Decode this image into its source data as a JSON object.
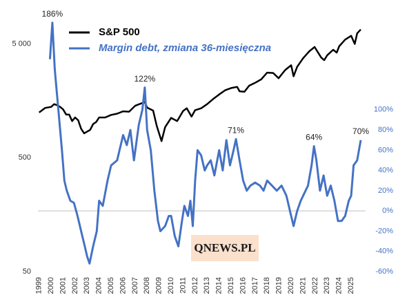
{
  "chart_data": {
    "type": "line",
    "watermark": "QNEWS.PL",
    "xlim": [
      1998.9,
      2026.2
    ],
    "xticks": [
      1999,
      2000,
      2001,
      2002,
      2003,
      2004,
      2005,
      2006,
      2007,
      2008,
      2009,
      2010,
      2011,
      2012,
      2013,
      2014,
      2015,
      2016,
      2017,
      2018,
      2019,
      2020,
      2021,
      2022,
      2023,
      2024,
      2025
    ],
    "ylim": [
      50,
      8000
    ],
    "ylog": true,
    "yticks": [
      50,
      500,
      {
        "value": 5000,
        "label": "5 000"
      }
    ],
    "y2lim": [
      -60,
      188
    ],
    "y2ticks": [
      {
        "value": -60,
        "label": "-60%"
      },
      {
        "value": -40,
        "label": "-40%"
      },
      {
        "value": -20,
        "label": "-20%"
      },
      {
        "value": 0,
        "label": "0%"
      },
      {
        "value": 20,
        "label": "20%"
      },
      {
        "value": 40,
        "label": "40%"
      },
      {
        "value": 60,
        "label": "60%"
      },
      {
        "value": 80,
        "label": "80%"
      },
      {
        "value": 100,
        "label": "100%"
      }
    ],
    "zero_line": true,
    "series": [
      {
        "name": "S&P 500",
        "color": "#000000",
        "x": [
          1999.0,
          1999.5,
          2000.0,
          2000.25,
          2000.5,
          2000.75,
          2001.0,
          2001.25,
          2001.5,
          2001.75,
          2002.0,
          2002.25,
          2002.5,
          2002.75,
          2003.0,
          2003.25,
          2003.5,
          2003.75,
          2004.0,
          2004.5,
          2005.0,
          2005.5,
          2006.0,
          2006.5,
          2007.0,
          2007.5,
          2007.8,
          2008.0,
          2008.5,
          2008.8,
          2009.2,
          2009.5,
          2010.0,
          2010.5,
          2011.0,
          2011.3,
          2011.7,
          2012.0,
          2012.5,
          2013.0,
          2013.5,
          2014.0,
          2014.5,
          2015.0,
          2015.5,
          2015.7,
          2016.1,
          2016.5,
          2017.0,
          2017.5,
          2018.0,
          2018.5,
          2018.95,
          2019.5,
          2020.0,
          2020.2,
          2020.5,
          2021.0,
          2021.5,
          2021.95,
          2022.5,
          2022.75,
          2023.0,
          2023.5,
          2023.8,
          2024.0,
          2024.5,
          2025.0,
          2025.3,
          2025.5,
          2025.8
        ],
        "values": [
          1250,
          1370,
          1400,
          1480,
          1450,
          1400,
          1330,
          1200,
          1200,
          1050,
          1130,
          1070,
          900,
          820,
          850,
          880,
          990,
          1030,
          1130,
          1130,
          1190,
          1220,
          1280,
          1270,
          1430,
          1500,
          1540,
          1380,
          1300,
          950,
          700,
          930,
          1120,
          1050,
          1290,
          1360,
          1150,
          1310,
          1360,
          1480,
          1640,
          1800,
          1960,
          2050,
          2100,
          1920,
          1900,
          2150,
          2280,
          2440,
          2800,
          2780,
          2500,
          2950,
          3250,
          2600,
          3150,
          3750,
          4300,
          4700,
          3800,
          3600,
          3970,
          4450,
          4200,
          4770,
          5460,
          5900,
          5000,
          6200,
          6700
        ]
      },
      {
        "name": "Margin debt, zmiana 36-miesięczna",
        "color": "#4472c4",
        "axis": "y2",
        "x": [
          1999.9,
          2000.1,
          2000.3,
          2000.6,
          2000.9,
          2001.1,
          2001.3,
          2001.6,
          2001.9,
          2002.2,
          2002.5,
          2002.8,
          2003.0,
          2003.2,
          2003.5,
          2003.8,
          2004.0,
          2004.3,
          2004.7,
          2005.0,
          2005.5,
          2006.0,
          2006.3,
          2006.6,
          2006.9,
          2007.3,
          2007.6,
          2007.8,
          2008.0,
          2008.3,
          2008.6,
          2008.9,
          2009.1,
          2009.5,
          2009.8,
          2010.0,
          2010.3,
          2010.6,
          2010.9,
          2011.1,
          2011.4,
          2011.6,
          2011.8,
          2012.0,
          2012.2,
          2012.5,
          2012.8,
          2013.0,
          2013.3,
          2013.6,
          2014.0,
          2014.3,
          2014.6,
          2014.9,
          2015.2,
          2015.4,
          2015.7,
          2016.0,
          2016.3,
          2016.6,
          2017.0,
          2017.4,
          2017.7,
          2018.0,
          2018.4,
          2018.8,
          2019.2,
          2019.6,
          2020.0,
          2020.2,
          2020.5,
          2020.8,
          2021.0,
          2021.4,
          2021.7,
          2021.9,
          2022.1,
          2022.4,
          2022.7,
          2023.0,
          2023.3,
          2023.6,
          2023.9,
          2024.2,
          2024.5,
          2024.8,
          2025.0,
          2025.2,
          2025.5,
          2025.8
        ],
        "values": [
          150,
          186,
          140,
          100,
          60,
          30,
          20,
          10,
          8,
          -5,
          -20,
          -35,
          -45,
          -52,
          -35,
          -20,
          10,
          5,
          30,
          45,
          50,
          75,
          65,
          80,
          50,
          85,
          100,
          122,
          80,
          60,
          20,
          -10,
          -20,
          -15,
          -5,
          -5,
          -25,
          -35,
          -10,
          5,
          -5,
          10,
          -15,
          30,
          60,
          55,
          40,
          45,
          50,
          35,
          60,
          40,
          70,
          45,
          60,
          71,
          50,
          30,
          20,
          25,
          28,
          25,
          20,
          30,
          25,
          20,
          25,
          15,
          -5,
          -15,
          0,
          10,
          15,
          25,
          45,
          64,
          50,
          20,
          35,
          15,
          25,
          10,
          -10,
          -10,
          -5,
          10,
          15,
          45,
          50,
          70
        ]
      }
    ],
    "annotations": [
      {
        "text": "186%",
        "x": 2000.1,
        "value": 186
      },
      {
        "text": "122%",
        "x": 2007.8,
        "value": 122
      },
      {
        "text": "71%",
        "x": 2015.4,
        "value": 71
      },
      {
        "text": "64%",
        "x": 2021.9,
        "value": 64
      },
      {
        "text": "70%",
        "x": 2025.8,
        "value": 70
      }
    ]
  }
}
